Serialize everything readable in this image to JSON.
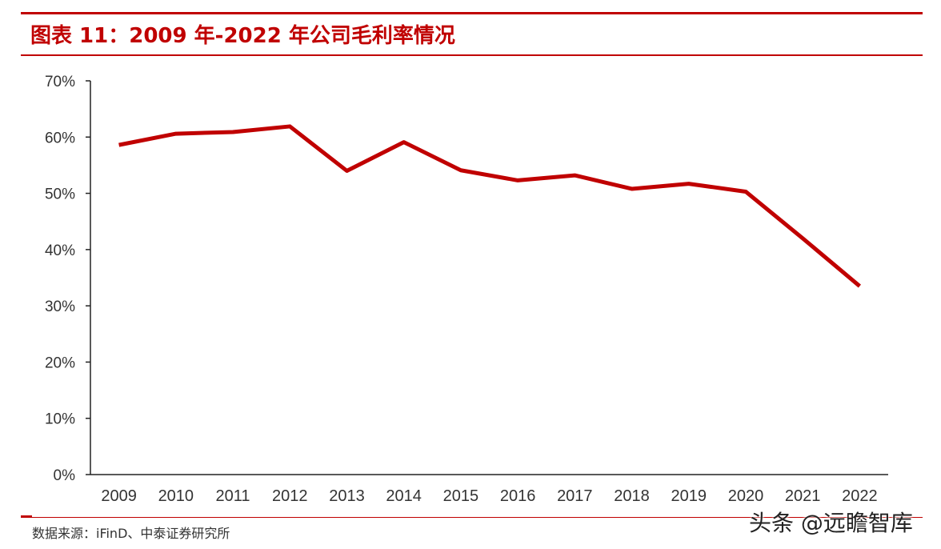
{
  "header": {
    "title": "图表 11：2009 年-2022 年公司毛利率情况"
  },
  "colors": {
    "accent": "#c00000",
    "series": "#c00000"
  },
  "chart_data": {
    "type": "line",
    "title": "",
    "xlabel": "",
    "ylabel": "",
    "x": [
      "2009",
      "2010",
      "2011",
      "2012",
      "2013",
      "2014",
      "2015",
      "2016",
      "2017",
      "2018",
      "2019",
      "2020",
      "2021",
      "2022"
    ],
    "series": [
      {
        "values": [
          58.6,
          60.6,
          60.9,
          61.9,
          54.0,
          59.1,
          54.1,
          52.3,
          53.2,
          50.8,
          51.7,
          50.3,
          42.0,
          33.5
        ]
      }
    ],
    "y_ticks": [
      "0%",
      "10%",
      "20%",
      "30%",
      "40%",
      "50%",
      "60%",
      "70%"
    ],
    "ylim": [
      0,
      70
    ],
    "y_format": "percent",
    "grid": false,
    "legend": "none"
  },
  "footer": {
    "source": "数据来源：iFinD、中泰证券研究所",
    "watermark": "头条 @远瞻智库"
  }
}
